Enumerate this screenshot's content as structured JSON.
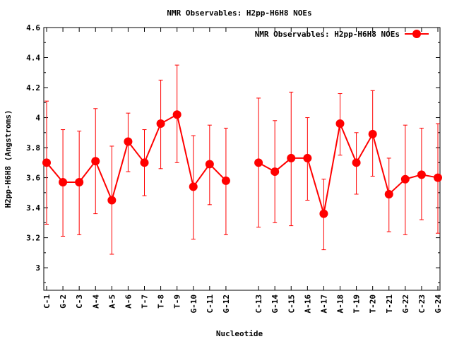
{
  "chart_data": {
    "type": "line",
    "title": "NMR Observables: H2pp-H6H8 NOEs",
    "xlabel": "Nucleotide",
    "ylabel": "H2pp-H6H8 (Angstroms)",
    "ylim": [
      2.85,
      4.6
    ],
    "yticks": [
      "3",
      "3.2",
      "3.4",
      "3.6",
      "3.8",
      "4",
      "4.2",
      "4.4",
      "4.6"
    ],
    "grid": false,
    "legend_position": "top-right",
    "categories": [
      "C-1",
      "G-2",
      "C-3",
      "A-4",
      "A-5",
      "A-6",
      "T-7",
      "T-8",
      "T-9",
      "G-10",
      "C-11",
      "G-12",
      "C-13",
      "G-14",
      "C-15",
      "A-16",
      "A-17",
      "A-18",
      "T-19",
      "T-20",
      "T-21",
      "G-22",
      "C-23",
      "G-24"
    ],
    "gap_after_index": 11,
    "series": [
      {
        "name": "NMR Observables: H2pp-H6H8 NOEs",
        "color": "#ff0000",
        "values": [
          3.7,
          3.57,
          3.57,
          3.71,
          3.45,
          3.84,
          3.7,
          3.96,
          4.02,
          3.54,
          3.69,
          3.58,
          3.7,
          3.64,
          3.73,
          3.73,
          3.36,
          3.96,
          3.7,
          3.89,
          3.49,
          3.59,
          3.62,
          3.6
        ],
        "error_low": [
          3.29,
          3.21,
          3.22,
          3.36,
          3.09,
          3.64,
          3.48,
          3.66,
          3.7,
          3.19,
          3.42,
          3.22,
          3.27,
          3.3,
          3.28,
          3.45,
          3.12,
          3.75,
          3.49,
          3.61,
          3.24,
          3.22,
          3.32,
          3.23
        ],
        "error_high": [
          4.11,
          3.92,
          3.91,
          4.06,
          3.81,
          4.03,
          3.92,
          4.25,
          4.35,
          3.88,
          3.95,
          3.93,
          4.13,
          3.98,
          4.17,
          4.0,
          3.59,
          4.16,
          3.9,
          4.18,
          3.73,
          3.95,
          3.93,
          3.96
        ]
      }
    ]
  }
}
